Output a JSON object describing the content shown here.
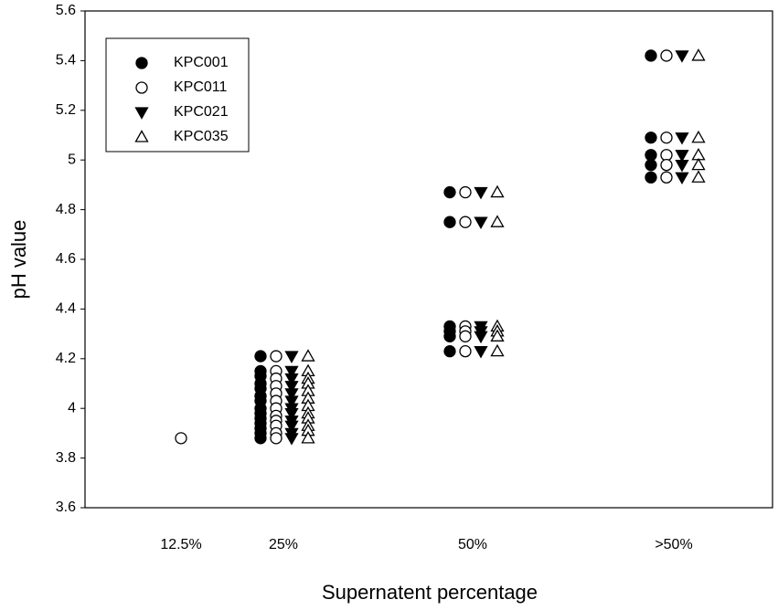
{
  "chart_data": {
    "type": "scatter",
    "x_label": "Supernatent percentage",
    "y_label": "pH value",
    "categories": [
      "12.5%",
      "25%",
      "50%",
      ">50%"
    ],
    "ylim": [
      3.6,
      5.6
    ],
    "yticks": [
      3.6,
      3.8,
      4.0,
      4.2,
      4.4,
      4.6,
      4.8,
      5.0,
      5.2,
      5.4,
      5.6
    ],
    "legend": "upper left",
    "series": [
      {
        "name": "KPC001",
        "color": "#000000",
        "marker": "circle",
        "filled": true,
        "values": [
          [],
          [
            4.21,
            4.15,
            4.13,
            4.1,
            4.08,
            4.05,
            4.03,
            4.0,
            3.98,
            3.96,
            3.94,
            3.92,
            3.9,
            3.88
          ],
          [
            4.87,
            4.75,
            4.33,
            4.31,
            4.29,
            4.23
          ],
          [
            5.42,
            5.09,
            5.02,
            4.98,
            4.93
          ]
        ]
      },
      {
        "name": "KPC011",
        "color": "#000000",
        "marker": "circle",
        "filled": false,
        "values": [
          [
            3.88
          ],
          [
            4.21,
            4.15,
            4.12,
            4.09,
            4.06,
            4.03,
            4.0,
            3.97,
            3.95,
            3.93,
            3.9,
            3.88
          ],
          [
            4.87,
            4.75,
            4.33,
            4.31,
            4.29,
            4.23
          ],
          [
            5.42,
            5.09,
            5.02,
            4.98,
            4.93
          ]
        ]
      },
      {
        "name": "KPC021",
        "color": "#000000",
        "marker": "triangle-down",
        "filled": true,
        "values": [
          [],
          [
            4.21,
            4.15,
            4.12,
            4.09,
            4.06,
            4.03,
            4.0,
            3.98,
            3.95,
            3.93,
            3.9,
            3.88
          ],
          [
            4.87,
            4.75,
            4.33,
            4.31,
            4.29,
            4.23
          ],
          [
            5.42,
            5.09,
            5.02,
            4.98,
            4.93
          ]
        ]
      },
      {
        "name": "KPC035",
        "color": "#000000",
        "marker": "triangle-up",
        "filled": false,
        "values": [
          [],
          [
            4.21,
            4.15,
            4.12,
            4.1,
            4.07,
            4.04,
            4.01,
            3.98,
            3.96,
            3.93,
            3.91,
            3.88
          ],
          [
            4.87,
            4.75,
            4.33,
            4.31,
            4.29,
            4.23
          ],
          [
            5.42,
            5.09,
            5.02,
            4.98,
            4.93
          ]
        ]
      }
    ]
  }
}
